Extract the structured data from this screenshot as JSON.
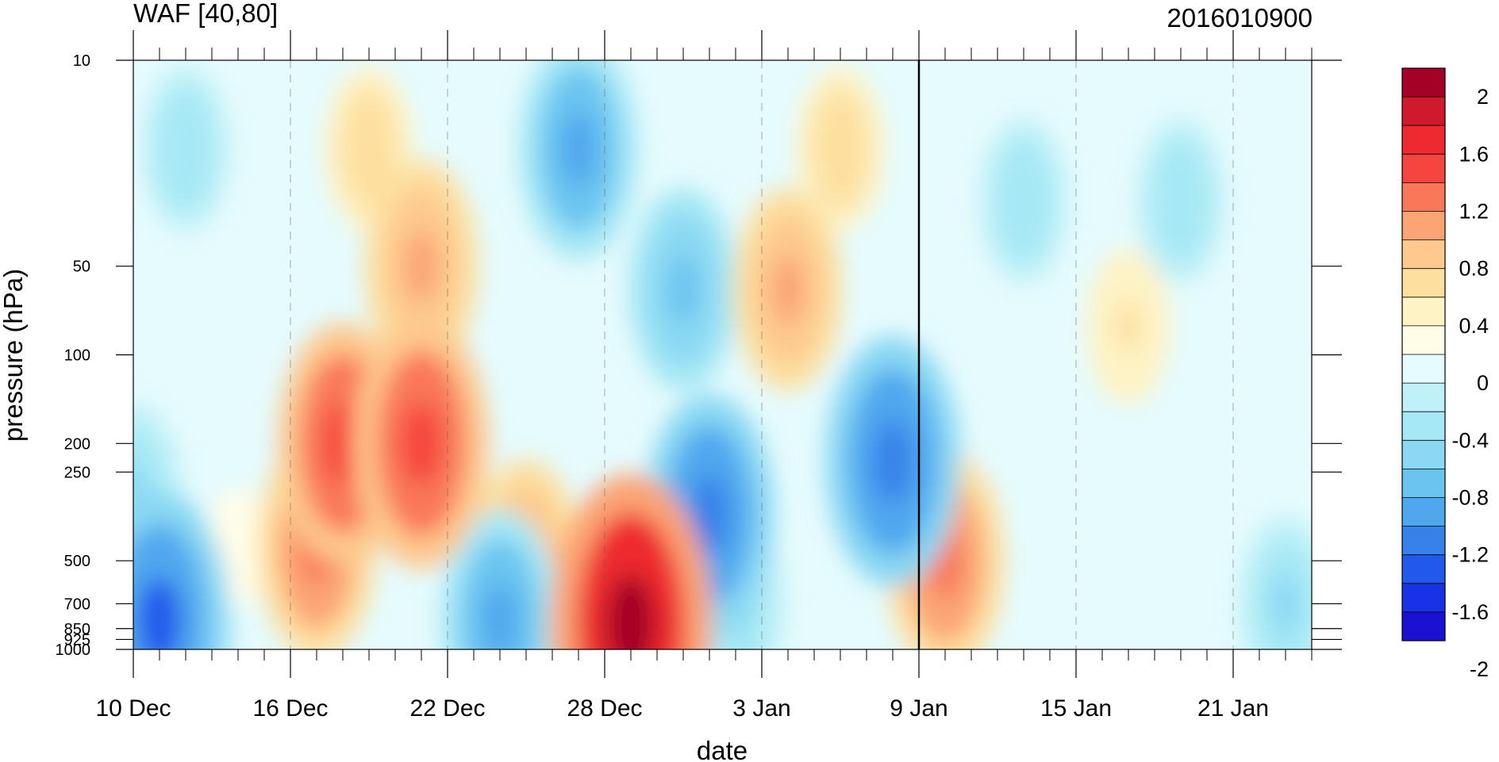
{
  "chart_data": {
    "type": "heatmap",
    "subtype": "filled-contour",
    "title": "WAF [40,80]",
    "title_right": "2016010900",
    "xlabel": "date",
    "ylabel": "pressure (hPa)",
    "y_scale": "log",
    "y_reversed": true,
    "ylim": [
      1000,
      10
    ],
    "y_ticks": [
      {
        "value": 10,
        "label": "10"
      },
      {
        "value": 50,
        "label": "50"
      },
      {
        "value": 100,
        "label": "100"
      },
      {
        "value": 200,
        "label": "200"
      },
      {
        "value": 250,
        "label": "250"
      },
      {
        "value": 500,
        "label": "500"
      },
      {
        "value": 700,
        "label": "700"
      },
      {
        "value": 850,
        "label": "850"
      },
      {
        "value": 925,
        "label": "925"
      },
      {
        "value": 1000,
        "label": "1000"
      }
    ],
    "xlim": [
      "2015-12-10",
      "2016-01-24"
    ],
    "x_ticks": [
      {
        "date": "2015-12-10",
        "label": "10 Dec"
      },
      {
        "date": "2015-12-16",
        "label": "16 Dec"
      },
      {
        "date": "2015-12-22",
        "label": "22 Dec"
      },
      {
        "date": "2015-12-28",
        "label": "28 Dec"
      },
      {
        "date": "2016-01-03",
        "label": "3 Jan"
      },
      {
        "date": "2016-01-09",
        "label": "9 Jan"
      },
      {
        "date": "2016-01-15",
        "label": "15 Jan"
      },
      {
        "date": "2016-01-21",
        "label": "21 Jan"
      }
    ],
    "current_date_line": "2016-01-09",
    "colorbar": {
      "labels": [
        "2",
        "1.6",
        "1.2",
        "0.8",
        "0.4",
        "0",
        "-0.4",
        "-0.8",
        "-1.2",
        "-1.6",
        "-2"
      ],
      "colors_top_to_bottom": [
        "#a50026",
        "#d0192b",
        "#ee2a2e",
        "#f6453e",
        "#f9785a",
        "#fba474",
        "#fdc98e",
        "#fde0a0",
        "#fef3c4",
        "#fffde8",
        "#e5fbfd",
        "#c0f1f8",
        "#a6e8f5",
        "#8ad8f3",
        "#6ac4f0",
        "#4fa8ee",
        "#3782ea",
        "#2358ec",
        "#1a32e6",
        "#1a12d0"
      ],
      "vmin": -2.2,
      "vmax": 2.2
    },
    "sample_points": [
      {
        "date": "2015-12-11",
        "p": 800,
        "v": -1.6
      },
      {
        "date": "2015-12-10",
        "p": 300,
        "v": -0.8
      },
      {
        "date": "2015-12-12",
        "p": 20,
        "v": -0.6
      },
      {
        "date": "2015-12-14",
        "p": 450,
        "v": 0.1
      },
      {
        "date": "2015-12-17",
        "p": 450,
        "v": 1.2
      },
      {
        "date": "2015-12-18",
        "p": 200,
        "v": 1.4
      },
      {
        "date": "2015-12-21",
        "p": 200,
        "v": 1.5
      },
      {
        "date": "2015-12-21",
        "p": 50,
        "v": 1.1
      },
      {
        "date": "2015-12-19",
        "p": 20,
        "v": 0.6
      },
      {
        "date": "2015-12-24",
        "p": 800,
        "v": -1.2
      },
      {
        "date": "2015-12-25",
        "p": 500,
        "v": 1.0
      },
      {
        "date": "2015-12-29",
        "p": 820,
        "v": 2.0
      },
      {
        "date": "2015-12-27",
        "p": 20,
        "v": -1.2
      },
      {
        "date": "2015-12-31",
        "p": 60,
        "v": -1.0
      },
      {
        "date": "2016-01-01",
        "p": 350,
        "v": -1.4
      },
      {
        "date": "2016-01-02",
        "p": 700,
        "v": -0.8
      },
      {
        "date": "2016-01-04",
        "p": 60,
        "v": 1.0
      },
      {
        "date": "2016-01-06",
        "p": 20,
        "v": 0.6
      },
      {
        "date": "2016-01-08",
        "p": 230,
        "v": -1.5
      },
      {
        "date": "2016-01-10",
        "p": 500,
        "v": 1.2
      },
      {
        "date": "2016-01-13",
        "p": 30,
        "v": -0.6
      },
      {
        "date": "2016-01-17",
        "p": 80,
        "v": 0.5
      },
      {
        "date": "2016-01-19",
        "p": 30,
        "v": -0.6
      },
      {
        "date": "2016-01-23",
        "p": 700,
        "v": -0.7
      }
    ]
  }
}
